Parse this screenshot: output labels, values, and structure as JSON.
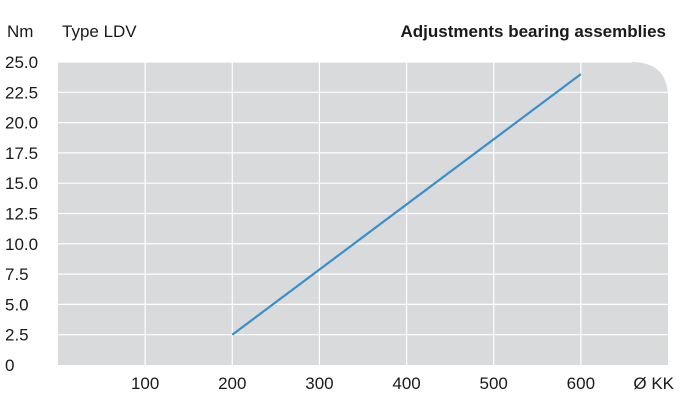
{
  "header": {
    "unit": "Nm",
    "series_label": "Type LDV",
    "title": "Adjustments bearing assemblies"
  },
  "colors": {
    "plot_background": "#d9dadb",
    "grid": "#ffffff",
    "line": "#3a8fcb"
  },
  "chart_data": {
    "type": "line",
    "title": "Adjustments bearing assemblies",
    "ylabel": "Nm",
    "xlabel": "Ø KK",
    "xlim": [
      0,
      700
    ],
    "ylim": [
      0,
      25
    ],
    "x_ticks": [
      100,
      200,
      300,
      400,
      500,
      600
    ],
    "x_tick_labels": [
      "100",
      "200",
      "300",
      "400",
      "500",
      "600"
    ],
    "y_ticks": [
      25,
      22.5,
      20,
      17.5,
      15,
      12.5,
      10,
      7.5,
      5,
      2.5,
      0
    ],
    "y_tick_labels": [
      "25.0",
      "22.5",
      "20.0",
      "17.5",
      "15.0",
      "12.5",
      "10.0",
      "7.5",
      "5.0",
      "2.5",
      "0"
    ],
    "grid": true,
    "series": [
      {
        "name": "Type LDV",
        "x": [
          200,
          600
        ],
        "y": [
          2.5,
          24
        ]
      }
    ]
  }
}
